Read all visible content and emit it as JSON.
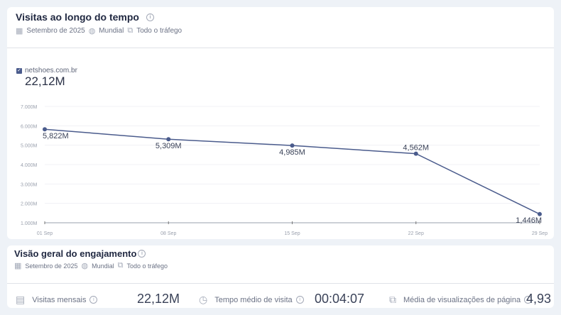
{
  "chart_card": {
    "title": "Visitas ao longo do tempo",
    "period": "Setembro de 2025",
    "region": "Mundial",
    "traffic": "Todo o tráfego",
    "legend_site": "netshoes.com.br",
    "total": "22,12M"
  },
  "chart_data": {
    "type": "line",
    "title": "Visitas ao longo do tempo",
    "x": [
      "01 Sep",
      "08 Sep",
      "15 Sep",
      "22 Sep",
      "29 Sep"
    ],
    "series": [
      {
        "name": "netshoes.com.br",
        "values": [
          5.822,
          5.309,
          4.985,
          4.562,
          1.446
        ],
        "labels": [
          "5,822M",
          "5,309M",
          "4,985M",
          "4,562M",
          "1,446M"
        ]
      }
    ],
    "yticks": [
      "1.000M",
      "2.000M",
      "3.000M",
      "4.000M",
      "5.000M",
      "6.000M",
      "7.000M"
    ],
    "ylim": [
      1,
      7
    ],
    "yunit": "M",
    "grid": true,
    "color": "#4a5b8c"
  },
  "engagement": {
    "title": "Visão geral do engajamento",
    "period": "Setembro de 2025",
    "region": "Mundial",
    "traffic": "Todo o tráfego",
    "kpis": [
      {
        "label": "Visitas mensais",
        "value": "22,12M"
      },
      {
        "label": "Tempo médio de visita",
        "value": "00:04:07"
      },
      {
        "label": "Média de visualizações de página",
        "value": "4,93"
      }
    ]
  }
}
